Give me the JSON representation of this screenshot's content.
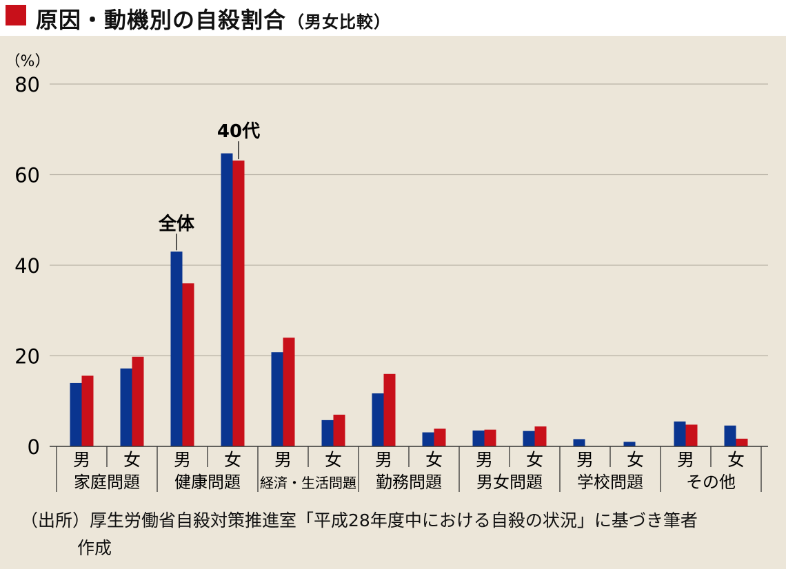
{
  "header": {
    "title": "原因・動機別の自殺割合",
    "subtitle": "（男女比較）"
  },
  "source": {
    "line1": "（出所）厚生労働省自殺対策推進室「平成28年度中における自殺の状況」に基づき筆者",
    "line2": "作成"
  },
  "colors": {
    "all": "#0a3590",
    "forties": "#c8101a",
    "marker": "#c8101a",
    "background": "#ece6d9",
    "grid": "#b8b2a6"
  },
  "chart_data": {
    "type": "bar",
    "unit_label": "（%）",
    "ylim": [
      0,
      80
    ],
    "yticks": [
      0,
      20,
      40,
      60,
      80
    ],
    "grid": true,
    "groups": [
      {
        "label": "家庭問題",
        "subs": [
          "男",
          "女"
        ]
      },
      {
        "label": "健康問題",
        "subs": [
          "男",
          "女"
        ]
      },
      {
        "label": "経済・生活問題",
        "subs": [
          "男",
          "女"
        ]
      },
      {
        "label": "勤務問題",
        "subs": [
          "男",
          "女"
        ]
      },
      {
        "label": "男女問題",
        "subs": [
          "男",
          "女"
        ]
      },
      {
        "label": "学校問題",
        "subs": [
          "男",
          "女"
        ]
      },
      {
        "label": "その他",
        "subs": [
          "男",
          "女"
        ]
      }
    ],
    "series": [
      {
        "name": "全体",
        "color": "#0a3590",
        "values": [
          14.0,
          17.2,
          43.0,
          64.7,
          20.8,
          5.8,
          11.7,
          3.1,
          3.5,
          3.4,
          1.6,
          1.0,
          5.5,
          4.6
        ]
      },
      {
        "name": "40代",
        "color": "#c8101a",
        "values": [
          15.6,
          19.8,
          36.0,
          63.1,
          24.0,
          7.0,
          16.0,
          3.9,
          3.7,
          4.4,
          0.0,
          0.0,
          4.8,
          1.7
        ]
      }
    ]
  }
}
